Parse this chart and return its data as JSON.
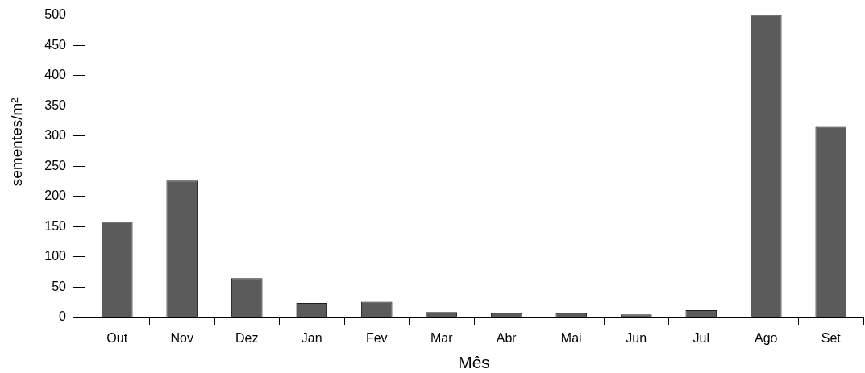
{
  "chart_data": {
    "type": "bar",
    "xlabel": "Mês",
    "ylabel": "sementes/m²",
    "categories": [
      "Out",
      "Nov",
      "Dez",
      "Jan",
      "Fev",
      "Mar",
      "Abr",
      "Mai",
      "Jun",
      "Jul",
      "Ago",
      "Set"
    ],
    "values": [
      158,
      226,
      65,
      24,
      26,
      9,
      7,
      7,
      5,
      12,
      500,
      315
    ],
    "color": "#5b5b5b",
    "ylim": [
      0,
      500
    ],
    "yticks": [
      0,
      50,
      100,
      150,
      200,
      250,
      300,
      350,
      400,
      450,
      500
    ]
  }
}
